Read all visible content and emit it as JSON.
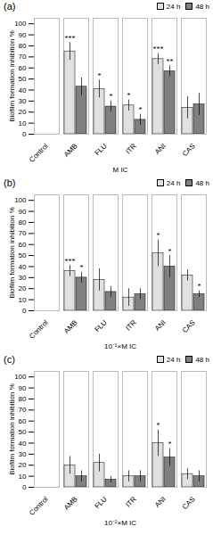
{
  "chart_data": [
    {
      "type": "bar",
      "title": "(a)",
      "xlabel": "M IC",
      "ylabel": "Biofilm formation inhibition %",
      "categories": [
        "Control",
        "AMB",
        "FLU",
        "ITR",
        "ANI",
        "CAS"
      ],
      "series": [
        {
          "name": "24 h",
          "color": "#e0e0e0",
          "values": [
            0,
            75,
            41,
            26,
            68,
            24
          ],
          "errors": [
            0,
            8,
            8,
            5,
            5,
            10
          ]
        },
        {
          "name": "48 h",
          "color": "#808080",
          "values": [
            0,
            43,
            25,
            13,
            57,
            27
          ],
          "errors": [
            0,
            8,
            5,
            5,
            5,
            10
          ]
        }
      ],
      "annotations": [
        {
          "category": "AMB",
          "series": "24 h",
          "text": "***"
        },
        {
          "category": "FLU",
          "series": "24 h",
          "text": "*"
        },
        {
          "category": "ITR",
          "series": "24 h",
          "text": "*"
        },
        {
          "category": "ANI",
          "series": "24 h",
          "text": "***"
        },
        {
          "category": "FLU",
          "series": "48 h",
          "text": "*"
        },
        {
          "category": "ITR",
          "series": "48 h",
          "text": "*"
        },
        {
          "category": "ANI",
          "series": "48 h",
          "text": "**"
        }
      ],
      "ylim": [
        0,
        105
      ],
      "yticks": [
        0,
        10,
        20,
        30,
        40,
        50,
        60,
        70,
        80,
        90,
        100
      ],
      "grid": false,
      "legend": "upper right"
    },
    {
      "type": "bar",
      "title": "(b)",
      "xlabel": "10⁻¹×M IC",
      "ylabel": "Biofilm formation inhibition %",
      "categories": [
        "Control",
        "AMB",
        "FLU",
        "ITR",
        "ANI",
        "CAS"
      ],
      "series": [
        {
          "name": "24 h",
          "color": "#e0e0e0",
          "values": [
            0,
            36,
            28,
            12,
            52,
            32
          ],
          "errors": [
            0,
            5,
            10,
            8,
            12,
            5
          ]
        },
        {
          "name": "48 h",
          "color": "#808080",
          "values": [
            0,
            30,
            17,
            15,
            40,
            15
          ],
          "errors": [
            0,
            5,
            5,
            5,
            10,
            3
          ]
        }
      ],
      "annotations": [
        {
          "category": "AMB",
          "series": "24 h",
          "text": "***"
        },
        {
          "category": "ANI",
          "series": "24 h",
          "text": "*"
        },
        {
          "category": "AMB",
          "series": "48 h",
          "text": "*"
        },
        {
          "category": "ANI",
          "series": "48 h",
          "text": "*"
        },
        {
          "category": "CAS",
          "series": "48 h",
          "text": "*"
        }
      ],
      "ylim": [
        0,
        105
      ],
      "yticks": [
        0,
        10,
        20,
        30,
        40,
        50,
        60,
        70,
        80,
        90,
        100
      ],
      "grid": false,
      "legend": "upper right"
    },
    {
      "type": "bar",
      "title": "(c)",
      "xlabel": "10⁻²×M IC",
      "ylabel": "Biofilm formation inhibition %",
      "categories": [
        "Control",
        "AMB",
        "FLU",
        "ITR",
        "ANI",
        "CAS"
      ],
      "series": [
        {
          "name": "24 h",
          "color": "#e0e0e0",
          "values": [
            0,
            20,
            22,
            10,
            40,
            12
          ],
          "errors": [
            0,
            8,
            8,
            5,
            12,
            5
          ]
        },
        {
          "name": "48 h",
          "color": "#808080",
          "values": [
            0,
            10,
            7,
            10,
            27,
            10
          ],
          "errors": [
            0,
            5,
            3,
            5,
            8,
            5
          ]
        }
      ],
      "annotations": [
        {
          "category": "ANI",
          "series": "24 h",
          "text": "*"
        },
        {
          "category": "ANI",
          "series": "48 h",
          "text": "*"
        }
      ],
      "ylim": [
        0,
        105
      ],
      "yticks": [
        0,
        10,
        20,
        30,
        40,
        50,
        60,
        70,
        80,
        90,
        100
      ],
      "grid": false,
      "legend": "upper right"
    }
  ]
}
